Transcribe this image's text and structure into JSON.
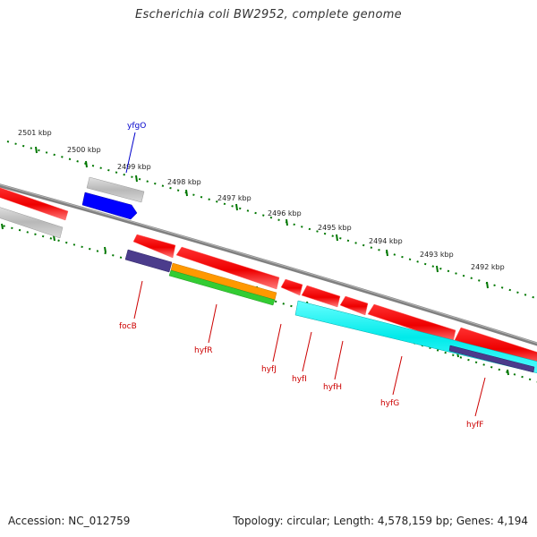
{
  "title": "Escherichia coli BW2952, complete genome",
  "footer": {
    "accession": "Accession: NC_012759",
    "summary": "Topology: circular; Length: 4,578,159 bp; Genes: 4,194"
  },
  "colors": {
    "gene": "#ff0000",
    "gene_partial": "#c8c8c8",
    "cds_blue": "#0000ff",
    "purple": "#4b3c8c",
    "orange": "#ff9900",
    "green": "#33cc33",
    "cyan": "#00ffff",
    "backbone": "#808080",
    "tick": "#007700",
    "label_red": "#cc0000",
    "label_blue": "#0000cc"
  },
  "scale_labels": [
    "2501 kbp",
    "2500 kbp",
    "2499 kbp",
    "2498 kbp",
    "2497 kbp",
    "2496 kbp",
    "2495 kbp",
    "2494 kbp",
    "2493 kbp",
    "2492 kbp"
  ],
  "gene_labels": [
    {
      "name": "yfgO",
      "color": "label_blue"
    },
    {
      "name": "focB",
      "color": "label_red"
    },
    {
      "name": "hyfR",
      "color": "label_red"
    },
    {
      "name": "hyfJ",
      "color": "label_red"
    },
    {
      "name": "hyfI",
      "color": "label_red"
    },
    {
      "name": "hyfH",
      "color": "label_red"
    },
    {
      "name": "hyfG",
      "color": "label_red"
    },
    {
      "name": "hyfF",
      "color": "label_red"
    }
  ]
}
